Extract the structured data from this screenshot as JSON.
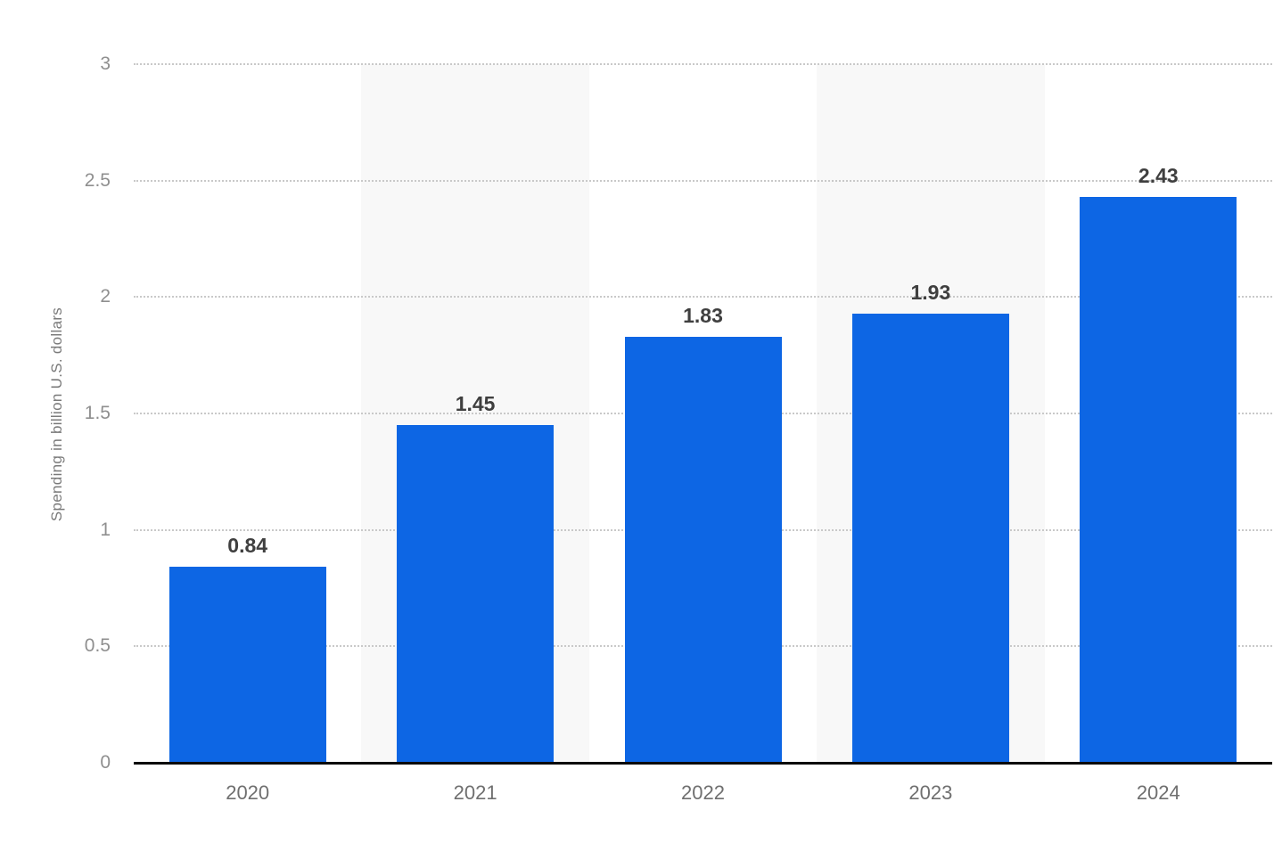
{
  "page": {
    "background_color": "#ffffff"
  },
  "chart_data": {
    "type": "bar",
    "title": "",
    "xlabel": "",
    "ylabel": "Spending in billion U.S. dollars",
    "categories": [
      "2020",
      "2021",
      "2022",
      "2023",
      "2024"
    ],
    "values": [
      0.84,
      1.45,
      1.83,
      1.93,
      2.43
    ],
    "value_labels": [
      "0.84",
      "1.45",
      "1.83",
      "1.93",
      "2.43"
    ],
    "ylim": [
      0,
      3
    ],
    "ytick_values": [
      0,
      0.5,
      1,
      1.5,
      2,
      2.5,
      3
    ],
    "ytick_labels": [
      "0",
      "0.5",
      "1",
      "1.5",
      "2",
      "2.5",
      "3"
    ],
    "grid": "horizontal-dotted",
    "legend": "none",
    "shaded_category_indices": [
      1,
      3
    ],
    "colors": {
      "bar": "#0d66e4",
      "band": "#f8f8f8",
      "gridline": "#c9c9c9",
      "axis_line": "#0b0b0b",
      "ytick_label": "#8f8f8f",
      "xtick_label": "#6f6f6f",
      "ylabel": "#7a7a7a",
      "value_label": "#3f3f3f"
    }
  }
}
